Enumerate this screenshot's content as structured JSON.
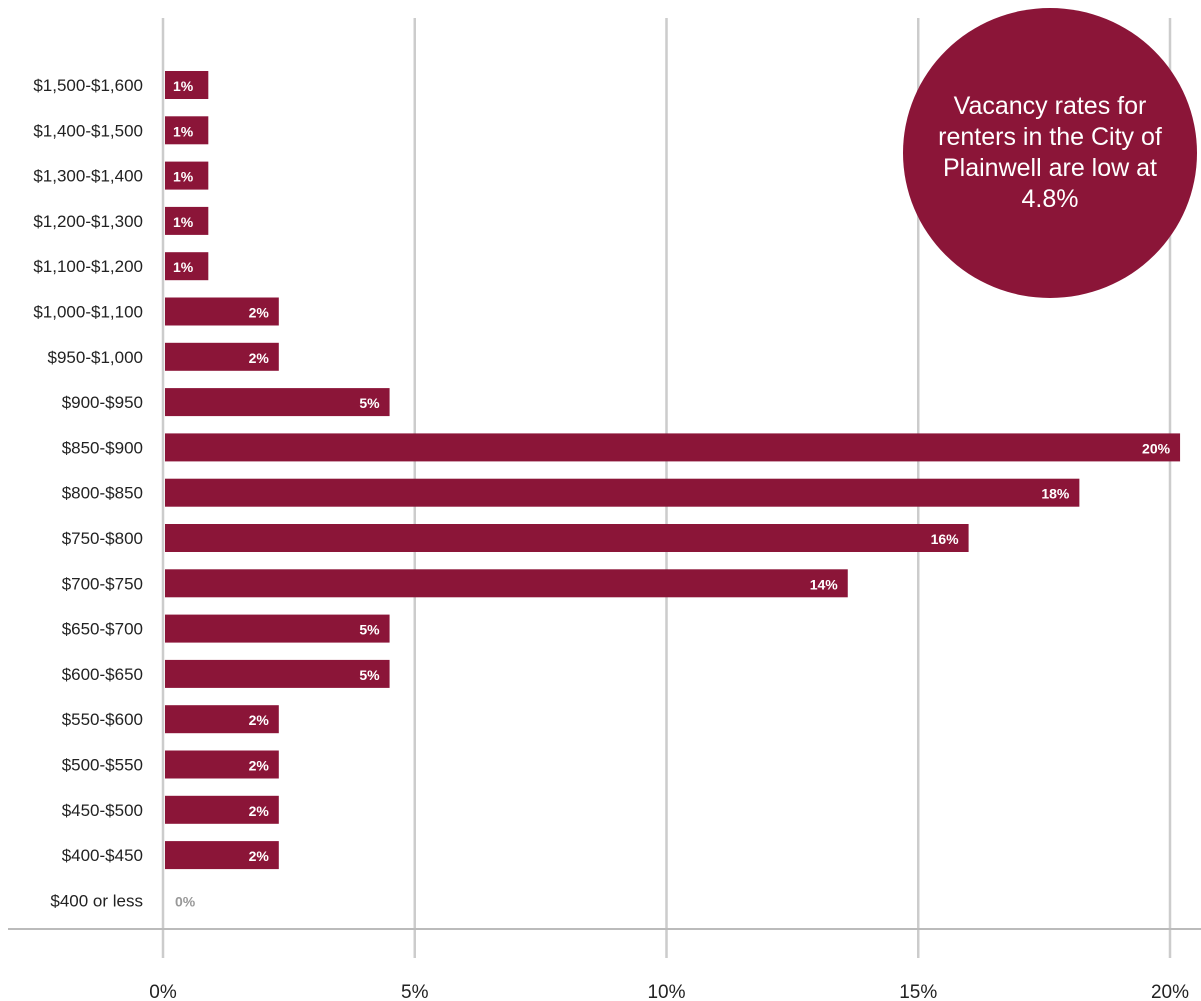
{
  "colors": {
    "bar": "#8b1538",
    "grid": "#cccccc",
    "axis": "#bbbbbb",
    "zero_label": "#999999"
  },
  "callout": {
    "text": "Vacancy rates for renters in the City of Plainwell are low at 4.8%"
  },
  "chart_data": {
    "type": "bar",
    "orientation": "horizontal",
    "categories": [
      "$1,500-$1,600",
      "$1,400-$1,500",
      "$1,300-$1,400",
      "$1,200-$1,300",
      "$1,100-$1,200",
      "$1,000-$1,100",
      "$950-$1,000",
      "$900-$950",
      "$850-$900",
      "$800-$850",
      "$750-$800",
      "$700-$750",
      "$650-$700",
      "$600-$650",
      "$550-$600",
      "$500-$550",
      "$450-$500",
      "$400-$450",
      "$400 or less"
    ],
    "values": [
      0.9,
      0.9,
      0.9,
      0.9,
      0.9,
      2.3,
      2.3,
      4.5,
      20.2,
      18.2,
      16.0,
      13.6,
      4.5,
      4.5,
      2.3,
      2.3,
      2.3,
      2.3,
      0
    ],
    "data_labels": [
      "1%",
      "1%",
      "1%",
      "1%",
      "1%",
      "2%",
      "2%",
      "5%",
      "20%",
      "18%",
      "16%",
      "14%",
      "5%",
      "5%",
      "2%",
      "2%",
      "2%",
      "2%",
      "0%"
    ],
    "xlim": [
      0,
      20
    ],
    "x_ticks": [
      "0%",
      "5%",
      "10%",
      "15%",
      "20%"
    ],
    "grid": true
  }
}
